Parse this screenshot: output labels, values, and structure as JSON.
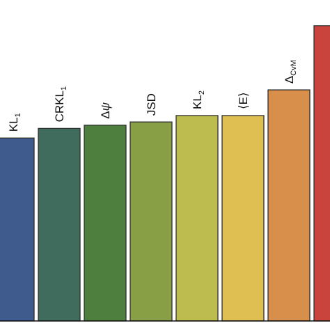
{
  "chart_data": {
    "type": "bar",
    "categories": [
      {
        "base": "KL",
        "sub": "1",
        "style": "normal",
        "wrap": ""
      },
      {
        "base": "CRKL",
        "sub": "1",
        "style": "normal",
        "wrap": ""
      },
      {
        "base": "Δψ",
        "sub": "",
        "style": "italic-last",
        "wrap": ""
      },
      {
        "base": "JSD",
        "sub": "",
        "style": "normal",
        "wrap": ""
      },
      {
        "base": "KL",
        "sub": "2",
        "style": "normal",
        "wrap": ""
      },
      {
        "base": "E",
        "sub": "",
        "style": "normal",
        "wrap": "angle"
      },
      {
        "base": "Δ",
        "sub": "CvM",
        "style": "normal",
        "wrap": ""
      },
      {
        "base": "",
        "sub": "",
        "style": "normal",
        "wrap": ""
      }
    ],
    "values": [
      0.57,
      0.6,
      0.61,
      0.62,
      0.64,
      0.64,
      0.72,
      0.92
    ],
    "colors": [
      "#3f5a8c",
      "#406c5e",
      "#4f7f3f",
      "#889f46",
      "#bdbd4f",
      "#dfbf52",
      "#d78f4b",
      "#c8443d"
    ],
    "title": "",
    "xlabel": "",
    "ylabel": "",
    "ylim": [
      0,
      1
    ],
    "grid": false,
    "legend": "none"
  }
}
